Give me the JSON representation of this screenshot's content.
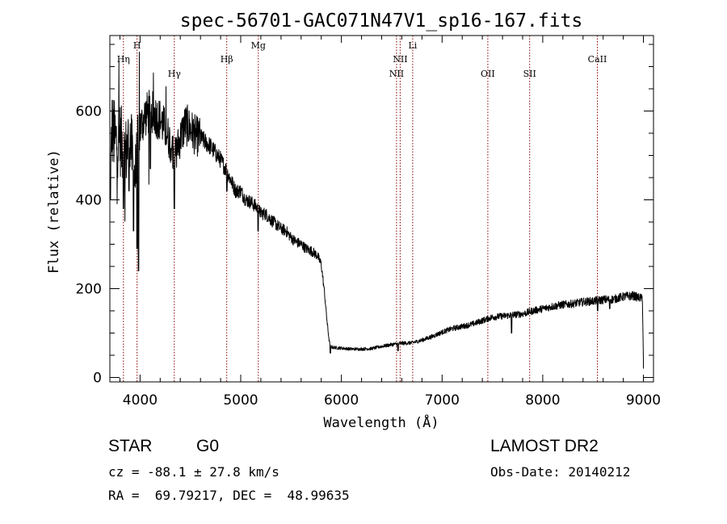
{
  "chart_data": {
    "type": "line",
    "title": "spec-56701-GAC071N47V1_sp16-167.fits",
    "xlabel": "Wavelength (Å)",
    "ylabel": "Flux (relative)",
    "xlim": [
      3700,
      9100
    ],
    "ylim": [
      -10,
      770
    ],
    "xticks": [
      4000,
      5000,
      6000,
      7000,
      8000,
      9000
    ],
    "yticks": [
      0,
      200,
      400,
      600
    ],
    "grid": false,
    "line_color": "#000000",
    "marker_color": "#8b0000",
    "spectrum_nodes": [
      [
        3700,
        380
      ],
      [
        3720,
        560
      ],
      [
        3760,
        530
      ],
      [
        3800,
        540
      ],
      [
        3850,
        500
      ],
      [
        3900,
        540
      ],
      [
        3950,
        450
      ],
      [
        4000,
        560
      ],
      [
        4050,
        590
      ],
      [
        4100,
        600
      ],
      [
        4150,
        590
      ],
      [
        4200,
        580
      ],
      [
        4250,
        560
      ],
      [
        4300,
        530
      ],
      [
        4350,
        500
      ],
      [
        4400,
        540
      ],
      [
        4450,
        570
      ],
      [
        4500,
        560
      ],
      [
        4550,
        545
      ],
      [
        4600,
        540
      ],
      [
        4650,
        530
      ],
      [
        4700,
        520
      ],
      [
        4750,
        505
      ],
      [
        4800,
        490
      ],
      [
        4850,
        470
      ],
      [
        4900,
        445
      ],
      [
        4950,
        420
      ],
      [
        5000,
        420
      ],
      [
        5050,
        400
      ],
      [
        5100,
        395
      ],
      [
        5150,
        385
      ],
      [
        5200,
        370
      ],
      [
        5250,
        368
      ],
      [
        5300,
        355
      ],
      [
        5350,
        345
      ],
      [
        5400,
        335
      ],
      [
        5450,
        330
      ],
      [
        5500,
        315
      ],
      [
        5550,
        305
      ],
      [
        5600,
        300
      ],
      [
        5650,
        290
      ],
      [
        5700,
        285
      ],
      [
        5760,
        275
      ],
      [
        5800,
        255
      ],
      [
        5830,
        195
      ],
      [
        5860,
        120
      ],
      [
        5880,
        80
      ],
      [
        5900,
        68
      ],
      [
        6000,
        66
      ],
      [
        6100,
        64
      ],
      [
        6200,
        64
      ],
      [
        6300,
        65
      ],
      [
        6400,
        70
      ],
      [
        6500,
        74
      ],
      [
        6600,
        77
      ],
      [
        6700,
        78
      ],
      [
        6800,
        84
      ],
      [
        6900,
        92
      ],
      [
        7000,
        102
      ],
      [
        7100,
        110
      ],
      [
        7200,
        115
      ],
      [
        7300,
        120
      ],
      [
        7400,
        128
      ],
      [
        7500,
        136
      ],
      [
        7600,
        138
      ],
      [
        7700,
        141
      ],
      [
        7800,
        143
      ],
      [
        7900,
        150
      ],
      [
        8000,
        155
      ],
      [
        8100,
        160
      ],
      [
        8200,
        164
      ],
      [
        8300,
        166
      ],
      [
        8400,
        170
      ],
      [
        8500,
        172
      ],
      [
        8600,
        175
      ],
      [
        8700,
        176
      ],
      [
        8800,
        182
      ],
      [
        8900,
        184
      ],
      [
        8950,
        180
      ],
      [
        8990,
        178
      ],
      [
        9000,
        40
      ]
    ],
    "dips": [
      [
        3835,
        380
      ],
      [
        3890,
        420
      ],
      [
        3935,
        330
      ],
      [
        3970,
        290
      ],
      [
        3985,
        240
      ],
      [
        4102,
        470
      ],
      [
        4340,
        380
      ],
      [
        4862,
        420
      ],
      [
        5172,
        330
      ],
      [
        5890,
        55
      ],
      [
        6563,
        60
      ],
      [
        7690,
        100
      ],
      [
        8545,
        150
      ],
      [
        8665,
        155
      ]
    ],
    "lines": [
      {
        "label": "Hη",
        "wavelength": 3835,
        "row": 2
      },
      {
        "label": "H",
        "wavelength": 3970,
        "row": 1
      },
      {
        "label": "Hγ",
        "wavelength": 4340,
        "row": 3
      },
      {
        "label": "Hβ",
        "wavelength": 4861,
        "row": 2
      },
      {
        "label": "Mg",
        "wavelength": 5175,
        "row": 1
      },
      {
        "label": "NII",
        "wavelength": 6548,
        "row": 3
      },
      {
        "label": "NII",
        "wavelength": 6584,
        "row": 2
      },
      {
        "label": "Li",
        "wavelength": 6708,
        "row": 1
      },
      {
        "label": "OII",
        "wavelength": 7454,
        "row": 3
      },
      {
        "label": "SII",
        "wavelength": 7870,
        "row": 3
      },
      {
        "label": "CaII",
        "wavelength": 8542,
        "row": 2
      }
    ]
  },
  "info": {
    "classification": "STAR",
    "subclass": "G0",
    "survey": "LAMOST DR2",
    "redshift": "cz = -88.1 ± 27.8 km/s",
    "obs_date": "Obs-Date: 20140212",
    "coords": "RA =  69.79217, DEC =  48.99635"
  }
}
